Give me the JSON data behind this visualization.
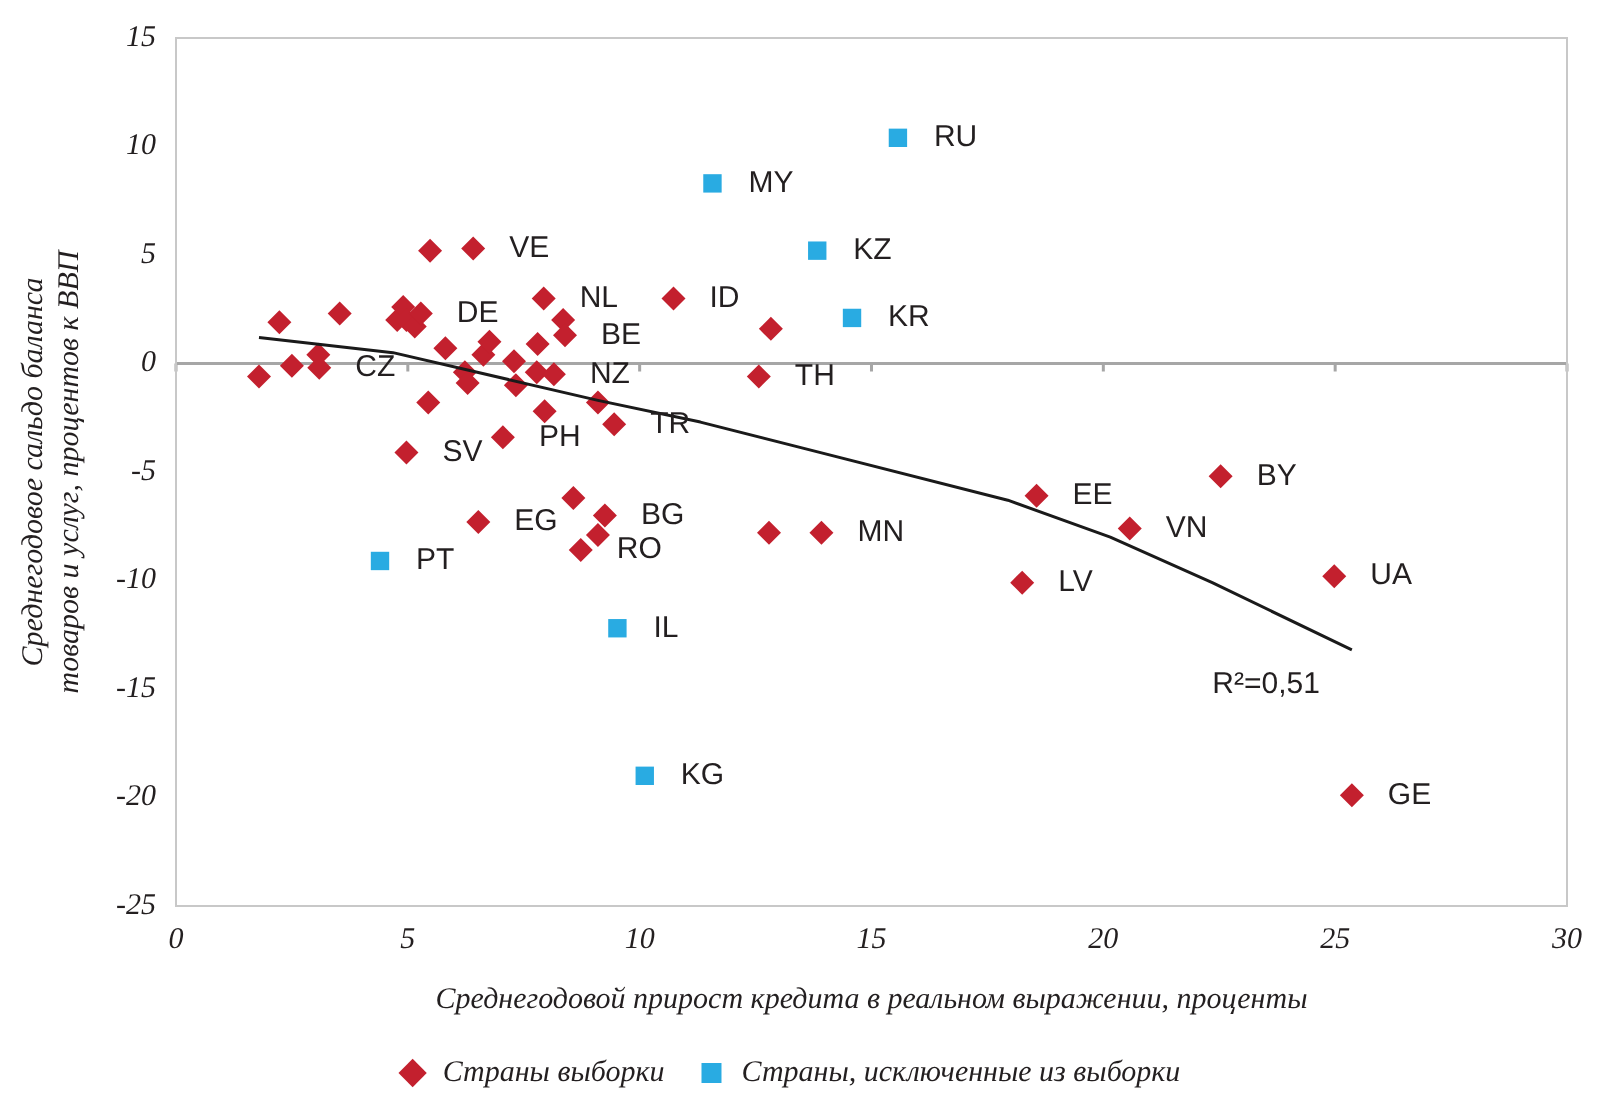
{
  "chart_data": {
    "type": "scatter",
    "xlabel": "Среднегодовой прирост кредита в реальном выражении, проценты",
    "ylabel": "Среднегодовое сальдо баланса товаров и услуг, процентов к ВВП",
    "xlim": [
      0,
      30
    ],
    "xticks": [
      0,
      5,
      10,
      15,
      20,
      25,
      30
    ],
    "ylim": [
      -25,
      15
    ],
    "yticks": [
      -25,
      -20,
      -15,
      -10,
      -5,
      0,
      5,
      10,
      15
    ],
    "grid": false,
    "legend": "bottom",
    "ref_lines": [
      {
        "axis": "y",
        "value": 0,
        "color": "#a6a6a6"
      }
    ],
    "series": [
      {
        "name": "Страны выборки",
        "color": "#c3202e",
        "marker": "diamond",
        "x": [
          1.79,
          2.23,
          2.5,
          3.07,
          3.09,
          3.53,
          4.77,
          4.9,
          4.97,
          5.15,
          5.28,
          4.97,
          5.48,
          6.41,
          5.44,
          5.81,
          6.23,
          6.29,
          6.63,
          6.76,
          6.52,
          7.05,
          7.29,
          7.33,
          7.8,
          7.78,
          7.93,
          7.95,
          8.15,
          8.35,
          8.39,
          8.57,
          9.1,
          9.25,
          9.1,
          8.73,
          9.45,
          10.73,
          12.57,
          12.83,
          12.79,
          13.92,
          18.56,
          18.25,
          20.57,
          22.53,
          24.98,
          25.36
        ],
        "values": [
          -0.6,
          1.9,
          -0.1,
          0.4,
          -0.2,
          2.3,
          2.0,
          2.6,
          2.0,
          1.7,
          2.3,
          -4.1,
          5.2,
          5.3,
          -1.8,
          0.7,
          -0.4,
          -0.9,
          0.4,
          1.0,
          -7.3,
          -3.4,
          0.1,
          -1.0,
          0.9,
          -0.4,
          3.0,
          -2.2,
          -0.5,
          2.0,
          1.3,
          -6.2,
          -1.8,
          -7.0,
          -7.9,
          -8.6,
          -2.8,
          3.0,
          -0.6,
          1.6,
          -7.8,
          -7.8,
          -6.1,
          -10.1,
          -7.6,
          -5.2,
          -9.8,
          -19.9
        ]
      },
      {
        "name": "Страны, исключенные из выборки",
        "color": "#29abe2",
        "marker": "square",
        "x": [
          15.57,
          11.57,
          13.83,
          14.58,
          4.4,
          9.52,
          10.11
        ],
        "values": [
          10.4,
          8.3,
          5.2,
          2.1,
          -9.1,
          -12.2,
          -19.0
        ]
      },
      {
        "type": "line",
        "color": "#1a1a1a",
        "marker": "none",
        "line_style": "solid",
        "x": [
          1.79,
          4.68,
          9.1,
          11.31,
          13.52,
          17.94,
          20.15,
          22.35,
          25.36
        ],
        "values": [
          1.2,
          0.5,
          -1.7,
          -2.7,
          -3.9,
          -6.3,
          -8.0,
          -10.1,
          -13.2
        ]
      }
    ],
    "annotations": [
      {
        "text": "RU",
        "x": 15.57,
        "y": 10.4
      },
      {
        "text": "MY",
        "x": 11.57,
        "y": 8.3
      },
      {
        "text": "KZ",
        "x": 13.83,
        "y": 5.2
      },
      {
        "text": "KR",
        "x": 14.58,
        "y": 2.1
      },
      {
        "text": "PT",
        "x": 4.4,
        "y": -9.1
      },
      {
        "text": "IL",
        "x": 9.52,
        "y": -12.2
      },
      {
        "text": "KG",
        "x": 10.11,
        "y": -19.0
      },
      {
        "text": "VE",
        "x": 6.41,
        "y": 5.3
      },
      {
        "text": "NL",
        "x": 7.93,
        "y": 3.0
      },
      {
        "text": "ID",
        "x": 10.73,
        "y": 3.0
      },
      {
        "text": "DE",
        "x": 5.28,
        "y": 2.3
      },
      {
        "text": "BE",
        "x": 8.39,
        "y": 1.3
      },
      {
        "text": "CZ",
        "x": 3.09,
        "y": -0.2
      },
      {
        "text": "NZ",
        "x": 8.15,
        "y": -0.5
      },
      {
        "text": "TH",
        "x": 12.57,
        "y": -0.6
      },
      {
        "text": "PH",
        "x": 7.05,
        "y": -3.4
      },
      {
        "text": "TR",
        "x": 9.45,
        "y": -2.8
      },
      {
        "text": "SV",
        "x": 4.97,
        "y": -4.1
      },
      {
        "text": "EG",
        "x": 6.52,
        "y": -7.3
      },
      {
        "text": "BG",
        "x": 9.25,
        "y": -7.0
      },
      {
        "text": "RO",
        "x": 8.73,
        "y": -8.6
      },
      {
        "text": "MN",
        "x": 13.92,
        "y": -7.8
      },
      {
        "text": "EE",
        "x": 18.56,
        "y": -6.1
      },
      {
        "text": "VN",
        "x": 20.57,
        "y": -7.6
      },
      {
        "text": "BY",
        "x": 22.53,
        "y": -5.2
      },
      {
        "text": "LV",
        "x": 18.25,
        "y": -10.1
      },
      {
        "text": "UA",
        "x": 24.98,
        "y": -9.8
      },
      {
        "text": "GE",
        "x": 25.36,
        "y": -19.9
      },
      "R²=0,51"
    ]
  }
}
